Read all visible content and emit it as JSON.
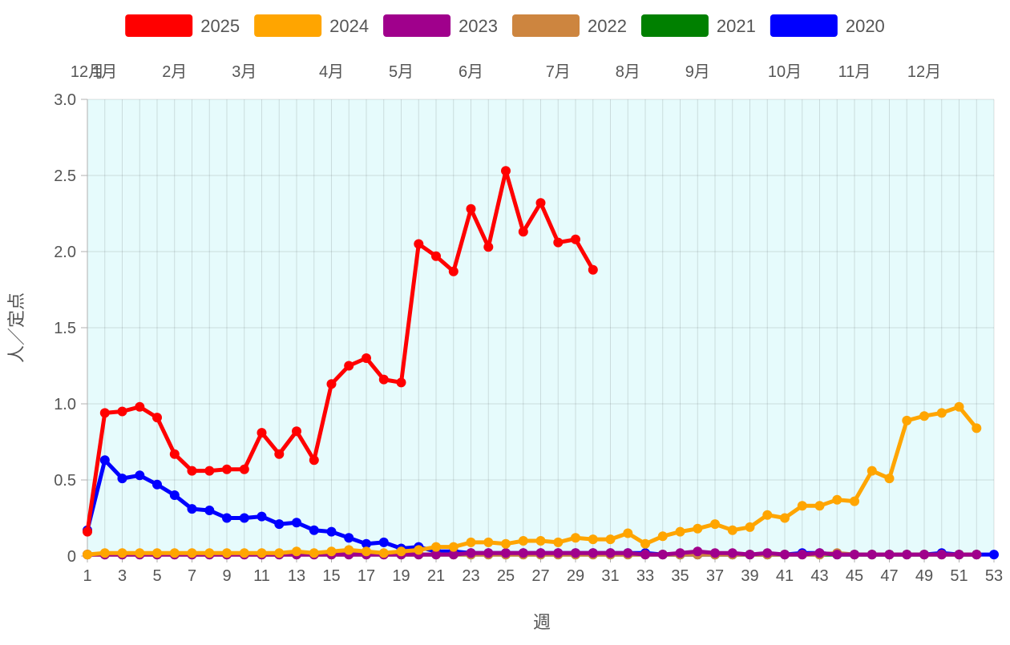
{
  "chart_data": {
    "type": "line",
    "xlabel": "週",
    "ylabel": "人／定点",
    "xlim": [
      1,
      53
    ],
    "ylim": [
      0,
      3.0
    ],
    "yticks": [
      "0",
      "0.5",
      "1.0",
      "1.5",
      "2.0",
      "2.5",
      "3.0"
    ],
    "xticks": [
      1,
      3,
      5,
      7,
      9,
      11,
      13,
      15,
      17,
      19,
      21,
      23,
      25,
      27,
      29,
      31,
      33,
      35,
      37,
      39,
      41,
      43,
      45,
      47,
      49,
      51,
      53
    ],
    "month_labels": [
      {
        "label": "12月",
        "week": 1
      },
      {
        "label": "1月",
        "week": 2
      },
      {
        "label": "2月",
        "week": 6
      },
      {
        "label": "3月",
        "week": 10
      },
      {
        "label": "4月",
        "week": 15
      },
      {
        "label": "5月",
        "week": 19
      },
      {
        "label": "6月",
        "week": 23
      },
      {
        "label": "7月",
        "week": 28
      },
      {
        "label": "8月",
        "week": 32
      },
      {
        "label": "9月",
        "week": 36
      },
      {
        "label": "10月",
        "week": 41
      },
      {
        "label": "11月",
        "week": 45
      },
      {
        "label": "12月",
        "week": 49
      }
    ],
    "grid": true,
    "legend_position": "top",
    "background": "#e6fbfc",
    "series": [
      {
        "name": "2025",
        "color": "#ff0000",
        "z": 6,
        "values": [
          0.16,
          0.94,
          0.95,
          0.98,
          0.91,
          0.67,
          0.56,
          0.56,
          0.57,
          0.57,
          0.81,
          0.67,
          0.82,
          0.63,
          1.13,
          1.25,
          1.3,
          1.16,
          1.14,
          2.05,
          1.97,
          1.87,
          2.28,
          2.03,
          2.53,
          2.13,
          2.32,
          2.06,
          2.08,
          1.88
        ]
      },
      {
        "name": "2024",
        "color": "#ffa500",
        "z": 5,
        "values": [
          0.01,
          0.02,
          0.02,
          0.02,
          0.02,
          0.02,
          0.02,
          0.02,
          0.02,
          0.02,
          0.02,
          0.02,
          0.03,
          0.02,
          0.03,
          0.04,
          0.03,
          0.02,
          0.03,
          0.04,
          0.06,
          0.06,
          0.09,
          0.09,
          0.08,
          0.1,
          0.1,
          0.09,
          0.12,
          0.11,
          0.11,
          0.15,
          0.08,
          0.13,
          0.16,
          0.18,
          0.21,
          0.17,
          0.19,
          0.27,
          0.25,
          0.33,
          0.33,
          0.37,
          0.36,
          0.56,
          0.51,
          0.89,
          0.92,
          0.94,
          0.98,
          0.84
        ]
      },
      {
        "name": "2023",
        "color": "#a0008c",
        "z": 4,
        "values": [
          0.01,
          0.01,
          0.01,
          0.01,
          0.01,
          0.01,
          0.01,
          0.01,
          0.01,
          0.01,
          0.01,
          0.01,
          0.01,
          0.01,
          0.01,
          0.01,
          0.01,
          0.01,
          0.01,
          0.01,
          0.01,
          0.01,
          0.02,
          0.02,
          0.02,
          0.02,
          0.02,
          0.02,
          0.02,
          0.02,
          0.02,
          0.02,
          0.01,
          0.01,
          0.02,
          0.03,
          0.02,
          0.02,
          0.01,
          0.02,
          0.01,
          0.01,
          0.02,
          0.01,
          0.01,
          0.01,
          0.01,
          0.01,
          0.01,
          0.01,
          0.01,
          0.01
        ]
      },
      {
        "name": "2022",
        "color": "#cd853f",
        "z": 3,
        "values": [
          0.01,
          0.01,
          0.01,
          0.01,
          0.01,
          0.01,
          0.01,
          0.01,
          0.01,
          0.01,
          0.01,
          0.01,
          0.01,
          0.01,
          0.01,
          0.01,
          0.01,
          0.01,
          0.01,
          0.01,
          0.01,
          0.01,
          0.01,
          0.01,
          0.01,
          0.01,
          0.01,
          0.01,
          0.01,
          0.01,
          0.01,
          0.01,
          0.01,
          0.01,
          0.01,
          0.01,
          0.01,
          0.01,
          0.01,
          0.01,
          0.01,
          0.01,
          0.01,
          0.02,
          0.01,
          0.01,
          0.01,
          0.01,
          0.01,
          0.01,
          0.01,
          0.01
        ]
      },
      {
        "name": "2021",
        "color": "#008000",
        "z": 2,
        "values": [
          0.01,
          0.01,
          0.01,
          0.01,
          0.01,
          0.01,
          0.01,
          0.01,
          0.01,
          0.01,
          0.01,
          0.01,
          0.01,
          0.01,
          0.01,
          0.01,
          0.01,
          0.01,
          0.01,
          0.01,
          0.01,
          0.01,
          0.01,
          0.01,
          0.01,
          0.01,
          0.01,
          0.01,
          0.01,
          0.01,
          0.01,
          0.01,
          0.01,
          0.01,
          0.01,
          0.01,
          0.01,
          0.01,
          0.01,
          0.01,
          0.01,
          0.01,
          0.01,
          0.01,
          0.01,
          0.01,
          0.01,
          0.01,
          0.01,
          0.01,
          0.01,
          0.01
        ]
      },
      {
        "name": "2020",
        "color": "#0000ff",
        "z": 1,
        "values": [
          0.17,
          0.63,
          0.51,
          0.53,
          0.47,
          0.4,
          0.31,
          0.3,
          0.25,
          0.25,
          0.26,
          0.21,
          0.22,
          0.17,
          0.16,
          0.12,
          0.08,
          0.09,
          0.05,
          0.06,
          0.03,
          0.03,
          0.02,
          0.02,
          0.02,
          0.02,
          0.02,
          0.02,
          0.02,
          0.02,
          0.02,
          0.02,
          0.02,
          0.01,
          0.01,
          0.01,
          0.01,
          0.01,
          0.01,
          0.01,
          0.01,
          0.02,
          0.02,
          0.01,
          0.01,
          0.01,
          0.01,
          0.01,
          0.01,
          0.02,
          0.01,
          0.01,
          0.01
        ]
      }
    ]
  }
}
